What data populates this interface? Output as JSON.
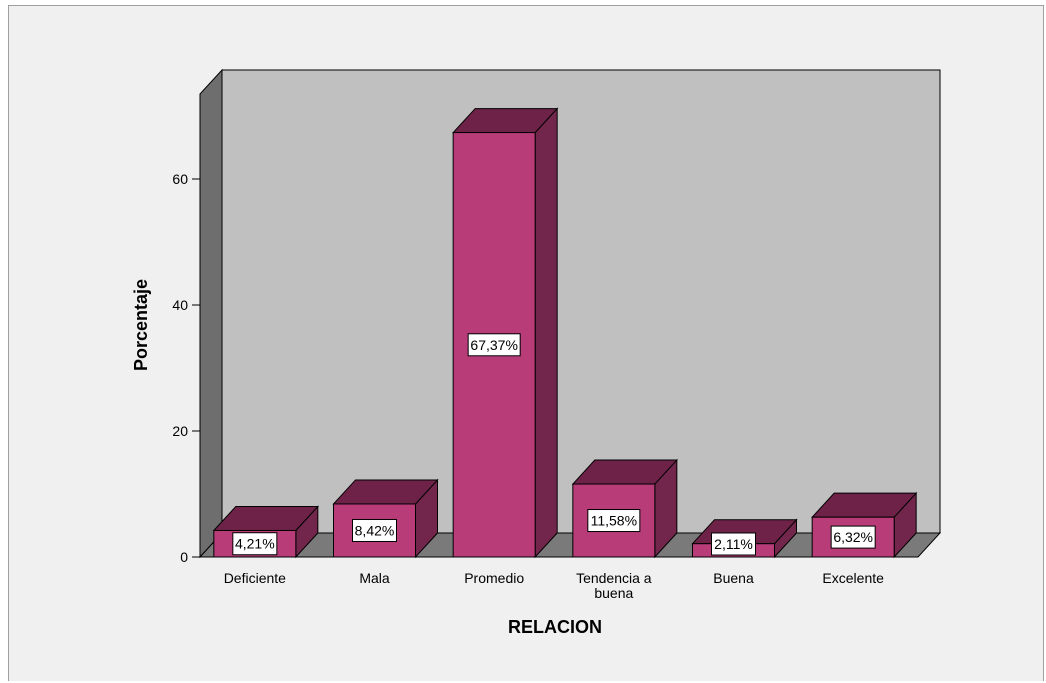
{
  "chart_data": {
    "type": "bar",
    "title": "",
    "xlabel": "RELACION",
    "ylabel": "Porcentaje",
    "categories": [
      [
        "Deficiente"
      ],
      [
        "Mala"
      ],
      [
        "Promedio"
      ],
      [
        "Tendencia a",
        "buena"
      ],
      [
        "Buena"
      ],
      [
        "Excelente"
      ]
    ],
    "values": [
      4.21,
      8.42,
      67.37,
      11.58,
      2.11,
      6.32
    ],
    "data_labels": [
      "4,21%",
      "8,42%",
      "67,37%",
      "11,58%",
      "2,11%",
      "6,32%"
    ],
    "y_ticks": [
      0,
      20,
      40,
      60
    ],
    "ylim": [
      0,
      70
    ],
    "grid": false,
    "legend": "none",
    "three_d": true,
    "colors": {
      "bar_front": "#b83c78",
      "bar_top": "#6e2248",
      "bar_side": "#72264c",
      "back_wall": "#c0c0c0",
      "side_wall": "#6e6e6e",
      "floor": "#7a7a7a",
      "frame_bg": "#f0f0f0"
    }
  }
}
